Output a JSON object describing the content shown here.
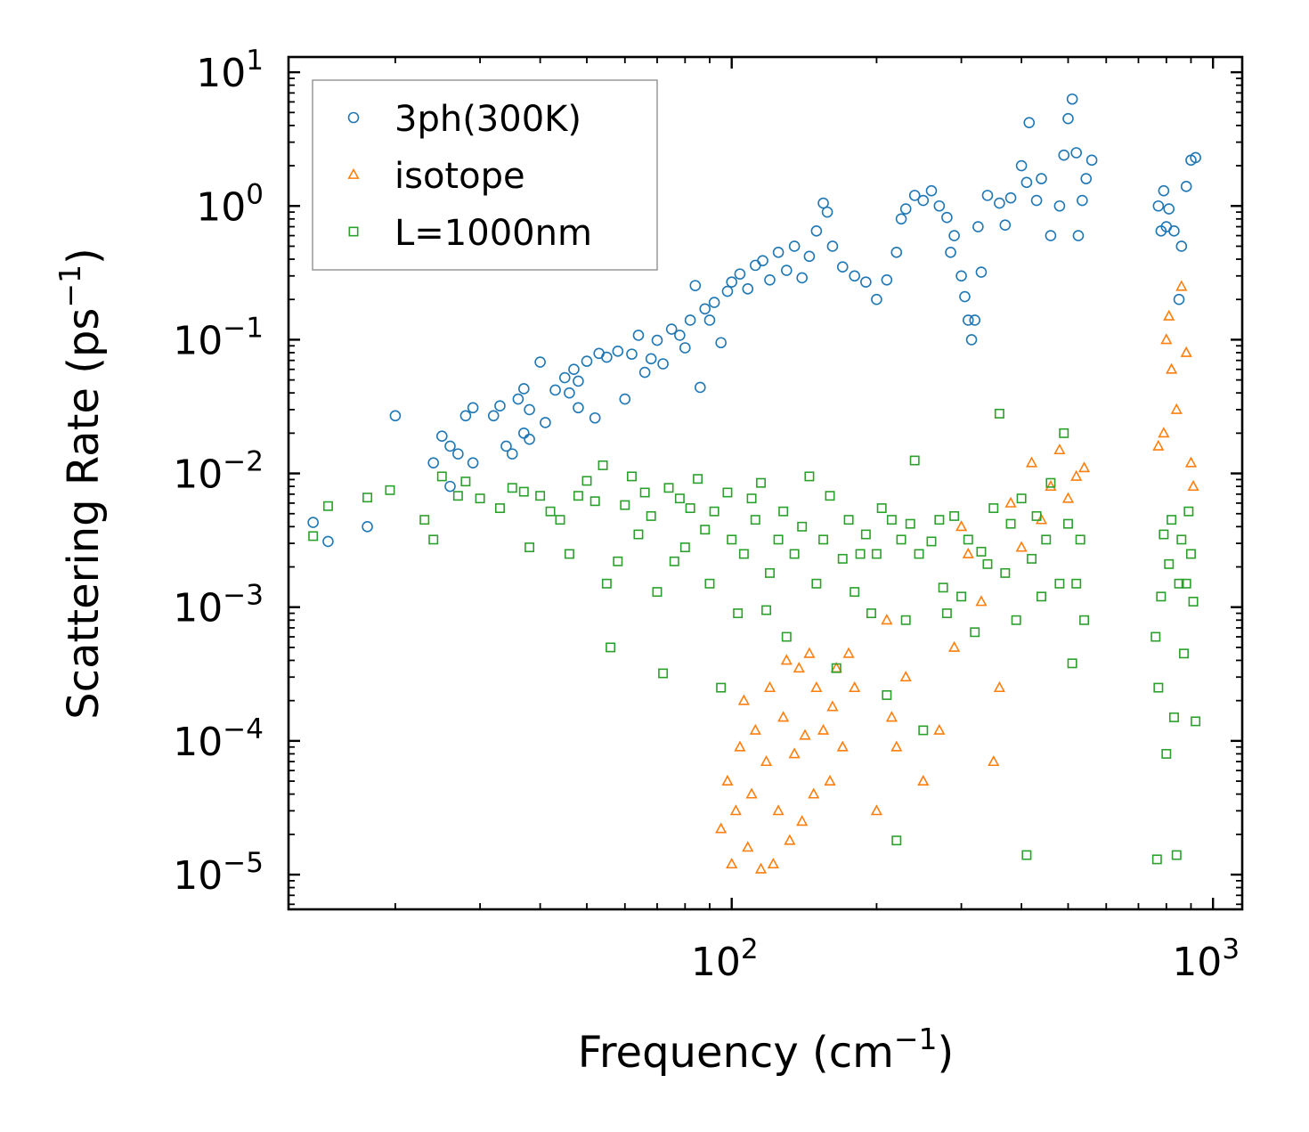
{
  "chart_data": {
    "type": "scatter",
    "title": "",
    "xlabel": "Frequency (cm",
    "xlabel_sup": "−1",
    "xlabel_end": ")",
    "ylabel": "Scattering Rate (ps",
    "ylabel_sup": "−1",
    "ylabel_end": ")",
    "xscale": "log",
    "yscale": "log",
    "xlim": [
      12,
      1150
    ],
    "ylim": [
      5.5e-06,
      13
    ],
    "xticks": [
      {
        "value": 100,
        "base": "10",
        "exp": "2"
      },
      {
        "value": 1000,
        "base": "10",
        "exp": "3"
      }
    ],
    "yticks": [
      {
        "value": 1e-05,
        "base": "10",
        "exp": "−5"
      },
      {
        "value": 0.0001,
        "base": "10",
        "exp": "−4"
      },
      {
        "value": 0.001,
        "base": "10",
        "exp": "−3"
      },
      {
        "value": 0.01,
        "base": "10",
        "exp": "−2"
      },
      {
        "value": 0.1,
        "base": "10",
        "exp": "−1"
      },
      {
        "value": 1,
        "base": "10",
        "exp": "0"
      },
      {
        "value": 10,
        "base": "10",
        "exp": "1"
      }
    ],
    "legend_position": "top-left",
    "series": [
      {
        "name": "3ph(300K)",
        "marker": "circle",
        "color": "#1f77b4",
        "points": [
          [
            13.5,
            0.0043
          ],
          [
            14.5,
            0.0031
          ],
          [
            17.5,
            0.004
          ],
          [
            20,
            0.027
          ],
          [
            24,
            0.012
          ],
          [
            25,
            0.019
          ],
          [
            26,
            0.016
          ],
          [
            26,
            0.008
          ],
          [
            27,
            0.014
          ],
          [
            28,
            0.027
          ],
          [
            29,
            0.031
          ],
          [
            29,
            0.012
          ],
          [
            32,
            0.027
          ],
          [
            33,
            0.032
          ],
          [
            34,
            0.016
          ],
          [
            35,
            0.014
          ],
          [
            36,
            0.036
          ],
          [
            37,
            0.043
          ],
          [
            37,
            0.02
          ],
          [
            38,
            0.018
          ],
          [
            38,
            0.03
          ],
          [
            40,
            0.068
          ],
          [
            41,
            0.024
          ],
          [
            43,
            0.042
          ],
          [
            45,
            0.052
          ],
          [
            46,
            0.04
          ],
          [
            47,
            0.06
          ],
          [
            48,
            0.049
          ],
          [
            48,
            0.031
          ],
          [
            50,
            0.069
          ],
          [
            52,
            0.026
          ],
          [
            53,
            0.079
          ],
          [
            55,
            0.074
          ],
          [
            58,
            0.082
          ],
          [
            60,
            0.036
          ],
          [
            62,
            0.078
          ],
          [
            64,
            0.108
          ],
          [
            66,
            0.057
          ],
          [
            68,
            0.072
          ],
          [
            70,
            0.099
          ],
          [
            72,
            0.066
          ],
          [
            75,
            0.12
          ],
          [
            78,
            0.108
          ],
          [
            80,
            0.087
          ],
          [
            82,
            0.14
          ],
          [
            84,
            0.254
          ],
          [
            86,
            0.044
          ],
          [
            88,
            0.17
          ],
          [
            90,
            0.14
          ],
          [
            92,
            0.19
          ],
          [
            95,
            0.095
          ],
          [
            98,
            0.23
          ],
          [
            100,
            0.27
          ],
          [
            104,
            0.31
          ],
          [
            108,
            0.24
          ],
          [
            112,
            0.36
          ],
          [
            116,
            0.39
          ],
          [
            120,
            0.28
          ],
          [
            125,
            0.45
          ],
          [
            130,
            0.33
          ],
          [
            135,
            0.5
          ],
          [
            140,
            0.29
          ],
          [
            145,
            0.42
          ],
          [
            150,
            0.65
          ],
          [
            155,
            1.05
          ],
          [
            158,
            0.9
          ],
          [
            162,
            0.5
          ],
          [
            170,
            0.35
          ],
          [
            180,
            0.3
          ],
          [
            190,
            0.27
          ],
          [
            200,
            0.2
          ],
          [
            210,
            0.28
          ],
          [
            220,
            0.45
          ],
          [
            225,
            0.8
          ],
          [
            230,
            0.95
          ],
          [
            240,
            1.2
          ],
          [
            250,
            1.1
          ],
          [
            260,
            1.3
          ],
          [
            270,
            1.0
          ],
          [
            280,
            0.82
          ],
          [
            285,
            0.45
          ],
          [
            290,
            0.6
          ],
          [
            300,
            0.3
          ],
          [
            305,
            0.21
          ],
          [
            310,
            0.14
          ],
          [
            315,
            0.1
          ],
          [
            320,
            0.14
          ],
          [
            325,
            0.7
          ],
          [
            330,
            0.32
          ],
          [
            340,
            1.2
          ],
          [
            360,
            1.05
          ],
          [
            370,
            0.72
          ],
          [
            380,
            1.15
          ],
          [
            400,
            2.0
          ],
          [
            410,
            1.5
          ],
          [
            415,
            4.2
          ],
          [
            430,
            1.1
          ],
          [
            440,
            1.6
          ],
          [
            460,
            0.6
          ],
          [
            480,
            1.0
          ],
          [
            490,
            2.4
          ],
          [
            500,
            4.5
          ],
          [
            510,
            6.3
          ],
          [
            520,
            2.5
          ],
          [
            525,
            0.6
          ],
          [
            535,
            1.1
          ],
          [
            545,
            1.6
          ],
          [
            560,
            2.2
          ],
          [
            770,
            1.0
          ],
          [
            780,
            0.65
          ],
          [
            790,
            1.3
          ],
          [
            800,
            0.7
          ],
          [
            810,
            0.95
          ],
          [
            830,
            0.65
          ],
          [
            850,
            0.2
          ],
          [
            860,
            0.5
          ],
          [
            880,
            1.4
          ],
          [
            900,
            2.2
          ],
          [
            920,
            2.3
          ]
        ]
      },
      {
        "name": "isotope",
        "marker": "triangle",
        "color": "#ff7f0e",
        "points": [
          [
            95,
            2.2e-05
          ],
          [
            98,
            5e-05
          ],
          [
            100,
            1.2e-05
          ],
          [
            102,
            3e-05
          ],
          [
            104,
            9e-05
          ],
          [
            106,
            0.0002
          ],
          [
            108,
            1.6e-05
          ],
          [
            110,
            4e-05
          ],
          [
            112,
            0.00012
          ],
          [
            115,
            1.1e-05
          ],
          [
            118,
            7e-05
          ],
          [
            120,
            0.00025
          ],
          [
            122,
            1.2e-05
          ],
          [
            125,
            3e-05
          ],
          [
            128,
            0.00015
          ],
          [
            130,
            0.0004
          ],
          [
            132,
            1.8e-05
          ],
          [
            135,
            8e-05
          ],
          [
            138,
            0.00035
          ],
          [
            140,
            2.5e-05
          ],
          [
            142,
            0.00011
          ],
          [
            145,
            0.00045
          ],
          [
            148,
            4e-05
          ],
          [
            150,
            0.00025
          ],
          [
            155,
            0.00012
          ],
          [
            160,
            5e-05
          ],
          [
            162,
            0.00018
          ],
          [
            165,
            0.00035
          ],
          [
            170,
            9e-05
          ],
          [
            175,
            0.00045
          ],
          [
            180,
            0.00025
          ],
          [
            200,
            3e-05
          ],
          [
            210,
            0.0008
          ],
          [
            215,
            0.00015
          ],
          [
            220,
            9e-05
          ],
          [
            230,
            0.0003
          ],
          [
            250,
            5e-05
          ],
          [
            270,
            0.00012
          ],
          [
            290,
            0.0005
          ],
          [
            300,
            0.004
          ],
          [
            310,
            0.0025
          ],
          [
            330,
            0.0011
          ],
          [
            350,
            7e-05
          ],
          [
            360,
            0.00025
          ],
          [
            380,
            0.006
          ],
          [
            400,
            0.0028
          ],
          [
            420,
            0.012
          ],
          [
            440,
            0.0045
          ],
          [
            460,
            0.008
          ],
          [
            480,
            0.015
          ],
          [
            500,
            0.0065
          ],
          [
            520,
            0.0095
          ],
          [
            540,
            0.011
          ],
          [
            770,
            0.016
          ],
          [
            790,
            0.02
          ],
          [
            800,
            0.1
          ],
          [
            810,
            0.15
          ],
          [
            820,
            0.06
          ],
          [
            840,
            0.03
          ],
          [
            860,
            0.25
          ],
          [
            880,
            0.08
          ],
          [
            900,
            0.012
          ],
          [
            910,
            0.008
          ]
        ]
      },
      {
        "name": "L=1000nm",
        "marker": "square",
        "color": "#2ca02c",
        "points": [
          [
            13.5,
            0.0034
          ],
          [
            14.5,
            0.0057
          ],
          [
            17.5,
            0.0066
          ],
          [
            19.5,
            0.0075
          ],
          [
            23,
            0.0045
          ],
          [
            24,
            0.0032
          ],
          [
            25,
            0.0095
          ],
          [
            27,
            0.0068
          ],
          [
            28,
            0.0087
          ],
          [
            30,
            0.0065
          ],
          [
            33,
            0.0055
          ],
          [
            35,
            0.0078
          ],
          [
            37,
            0.0073
          ],
          [
            38,
            0.0028
          ],
          [
            40,
            0.0068
          ],
          [
            42,
            0.0052
          ],
          [
            44,
            0.0045
          ],
          [
            46,
            0.0025
          ],
          [
            48,
            0.0068
          ],
          [
            50,
            0.0088
          ],
          [
            52,
            0.0062
          ],
          [
            54,
            0.0115
          ],
          [
            55,
            0.0015
          ],
          [
            56,
            0.0005
          ],
          [
            58,
            0.0022
          ],
          [
            60,
            0.0058
          ],
          [
            62,
            0.0095
          ],
          [
            64,
            0.0035
          ],
          [
            66,
            0.0072
          ],
          [
            68,
            0.0048
          ],
          [
            70,
            0.0013
          ],
          [
            72,
            0.00032
          ],
          [
            74,
            0.0078
          ],
          [
            76,
            0.0022
          ],
          [
            78,
            0.0065
          ],
          [
            80,
            0.0028
          ],
          [
            82,
            0.0055
          ],
          [
            85,
            0.0091
          ],
          [
            88,
            0.0038
          ],
          [
            90,
            0.0015
          ],
          [
            92,
            0.0052
          ],
          [
            95,
            0.00025
          ],
          [
            98,
            0.0072
          ],
          [
            100,
            0.0032
          ],
          [
            103,
            0.0009
          ],
          [
            106,
            0.0025
          ],
          [
            110,
            0.0065
          ],
          [
            112,
            0.0045
          ],
          [
            115,
            0.0085
          ],
          [
            118,
            0.00095
          ],
          [
            120,
            0.0018
          ],
          [
            125,
            0.0032
          ],
          [
            128,
            0.0052
          ],
          [
            130,
            0.0006
          ],
          [
            135,
            0.0025
          ],
          [
            140,
            0.004
          ],
          [
            145,
            0.0095
          ],
          [
            150,
            0.0015
          ],
          [
            155,
            0.0032
          ],
          [
            160,
            0.0068
          ],
          [
            165,
            0.00035
          ],
          [
            170,
            0.0023
          ],
          [
            175,
            0.0045
          ],
          [
            180,
            0.0013
          ],
          [
            185,
            0.0025
          ],
          [
            190,
            0.0035
          ],
          [
            195,
            0.0009
          ],
          [
            200,
            0.0025
          ],
          [
            205,
            0.0055
          ],
          [
            210,
            0.00022
          ],
          [
            215,
            0.0045
          ],
          [
            220,
            1.8e-05
          ],
          [
            225,
            0.0032
          ],
          [
            230,
            0.0008
          ],
          [
            235,
            0.0042
          ],
          [
            240,
            0.0125
          ],
          [
            245,
            0.0025
          ],
          [
            250,
            0.00012
          ],
          [
            260,
            0.0031
          ],
          [
            270,
            0.0045
          ],
          [
            275,
            0.0014
          ],
          [
            280,
            0.0009
          ],
          [
            290,
            0.0048
          ],
          [
            300,
            0.0012
          ],
          [
            310,
            0.0032
          ],
          [
            320,
            0.00065
          ],
          [
            330,
            0.0026
          ],
          [
            340,
            0.0021
          ],
          [
            350,
            0.0055
          ],
          [
            360,
            0.028
          ],
          [
            370,
            0.0018
          ],
          [
            380,
            0.0042
          ],
          [
            390,
            0.0008
          ],
          [
            400,
            0.0065
          ],
          [
            410,
            1.4e-05
          ],
          [
            420,
            0.0023
          ],
          [
            430,
            0.0048
          ],
          [
            440,
            0.0012
          ],
          [
            450,
            0.0032
          ],
          [
            460,
            0.0085
          ],
          [
            480,
            0.0015
          ],
          [
            490,
            0.02
          ],
          [
            500,
            0.0042
          ],
          [
            510,
            0.00038
          ],
          [
            520,
            0.0015
          ],
          [
            530,
            0.0032
          ],
          [
            540,
            0.0008
          ],
          [
            760,
            0.0006
          ],
          [
            765,
            1.3e-05
          ],
          [
            770,
            0.00025
          ],
          [
            780,
            0.0012
          ],
          [
            790,
            0.0035
          ],
          [
            800,
            8e-05
          ],
          [
            810,
            0.0021
          ],
          [
            820,
            0.0045
          ],
          [
            830,
            0.00015
          ],
          [
            840,
            1.4e-05
          ],
          [
            850,
            0.0015
          ],
          [
            860,
            0.0032
          ],
          [
            870,
            0.00045
          ],
          [
            880,
            0.0015
          ],
          [
            890,
            0.0052
          ],
          [
            900,
            0.0025
          ],
          [
            910,
            0.0011
          ],
          [
            920,
            0.00014
          ]
        ]
      }
    ]
  }
}
